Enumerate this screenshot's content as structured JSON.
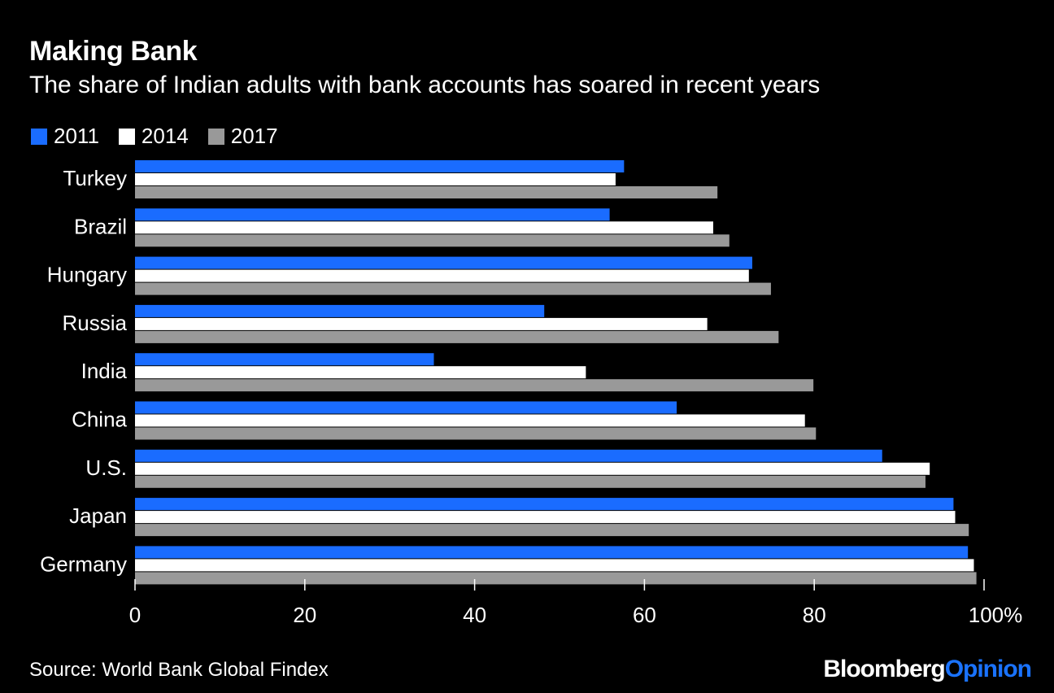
{
  "title": "Making Bank",
  "subtitle": "The share of Indian adults with bank accounts has soared in recent years",
  "source": "Source: World Bank Global Findex",
  "brand": {
    "part1": "Bloomberg",
    "part2": "Opinion"
  },
  "colors": {
    "2011": "#1a6cff",
    "2014": "#ffffff",
    "2017": "#999999",
    "background": "#000000"
  },
  "chart_data": {
    "type": "bar",
    "orientation": "horizontal",
    "categories": [
      "Turkey",
      "Brazil",
      "Hungary",
      "Russia",
      "India",
      "China",
      "U.S.",
      "Japan",
      "Germany"
    ],
    "series": [
      {
        "name": "2011",
        "values": [
          57.6,
          55.9,
          72.7,
          48.2,
          35.2,
          63.8,
          88.0,
          96.4,
          98.1
        ]
      },
      {
        "name": "2014",
        "values": [
          56.6,
          68.1,
          72.3,
          67.4,
          53.1,
          78.9,
          93.6,
          96.6,
          98.8
        ]
      },
      {
        "name": "2017",
        "values": [
          68.6,
          70.0,
          74.9,
          75.8,
          79.9,
          80.2,
          93.1,
          98.2,
          99.1
        ]
      }
    ],
    "xlim": [
      0,
      100
    ],
    "xticks": [
      "0",
      "20",
      "40",
      "60",
      "80",
      "100%"
    ],
    "xtick_values": [
      0,
      20,
      40,
      60,
      80,
      100
    ],
    "legend_position": "top-left",
    "grid": false
  }
}
